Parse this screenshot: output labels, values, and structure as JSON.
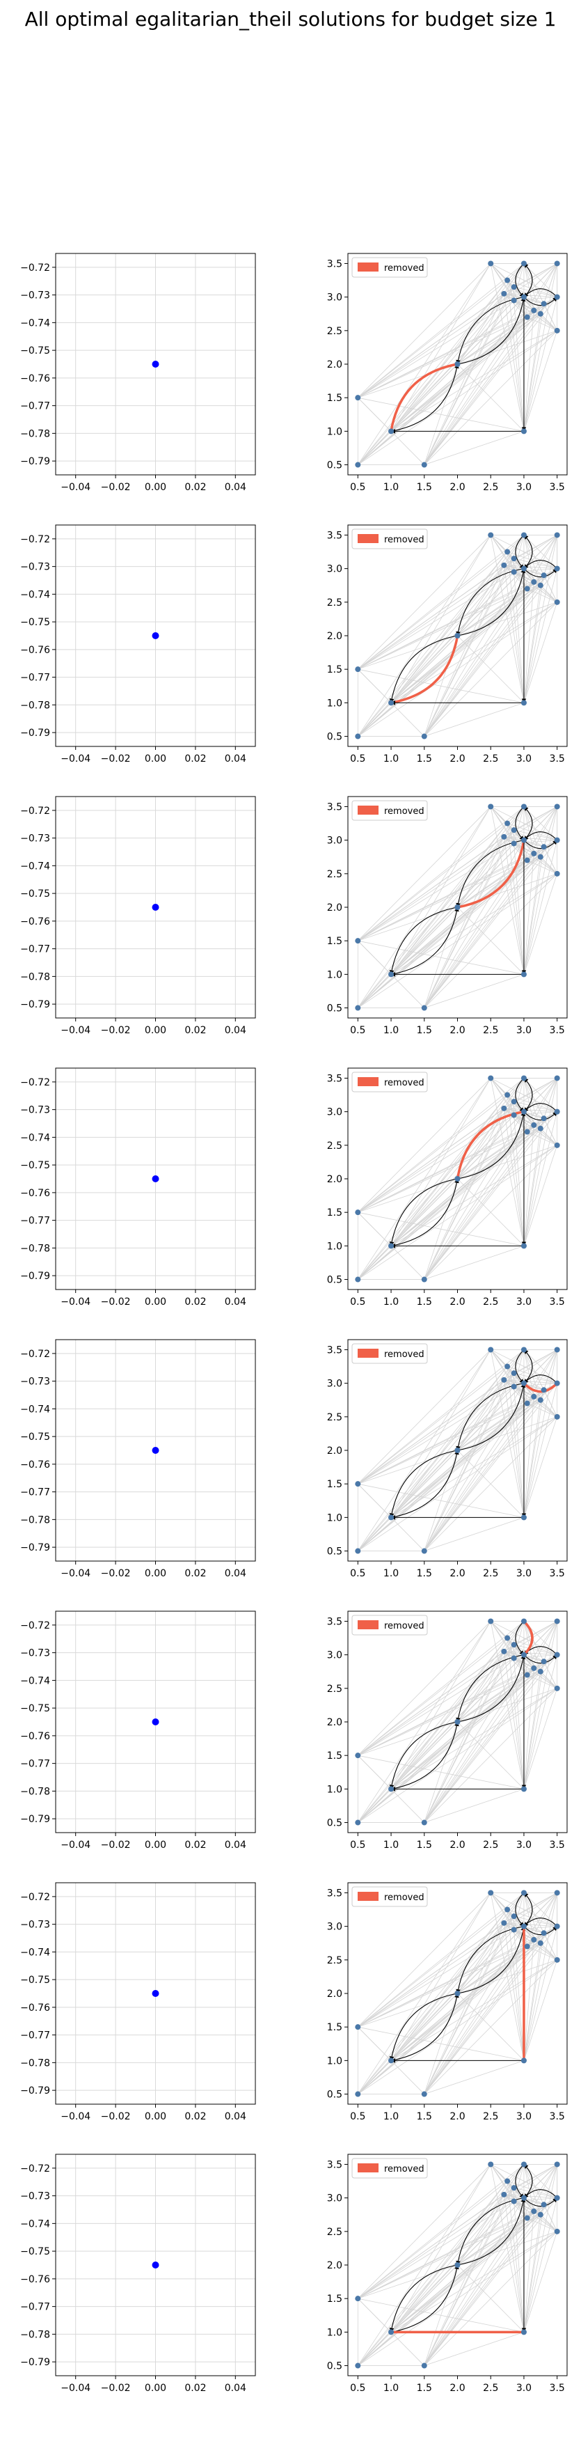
{
  "figure": {
    "title": "All optimal egalitarian_theil solutions for budget size 1"
  },
  "colors": {
    "point": "#0000ff",
    "node": "#4a78a8",
    "removed": "#f06048",
    "edge_bg": "#d4d4d4",
    "arc": "#000000",
    "grid": "#d9d9d9"
  },
  "chart_data": {
    "type": "scatter",
    "rows": 8,
    "left_panel": {
      "type": "scatter",
      "x": [
        0.0
      ],
      "y": [
        -0.755
      ],
      "xlim": [
        -0.05,
        0.05
      ],
      "ylim": [
        -0.795,
        -0.715
      ],
      "xticks": [
        "−0.04",
        "−0.02",
        "0.00",
        "0.02",
        "0.04"
      ],
      "xtick_values": [
        -0.04,
        -0.02,
        0.0,
        0.02,
        0.04
      ],
      "yticks": [
        "−0.72",
        "−0.73",
        "−0.74",
        "−0.75",
        "−0.76",
        "−0.77",
        "−0.78",
        "−0.79"
      ],
      "ytick_values": [
        -0.72,
        -0.73,
        -0.74,
        -0.75,
        -0.76,
        -0.77,
        -0.78,
        -0.79
      ],
      "grid": true
    },
    "right_panel": {
      "type": "network",
      "legend": "removed",
      "legend_position": "top-left",
      "xlim": [
        0.35,
        3.65
      ],
      "ylim": [
        0.35,
        3.65
      ],
      "ticks": [
        "0.5",
        "1.0",
        "1.5",
        "2.0",
        "2.5",
        "3.0",
        "3.5"
      ],
      "tick_values": [
        0.5,
        1.0,
        1.5,
        2.0,
        2.5,
        3.0,
        3.5
      ],
      "nodes": [
        [
          0.5,
          0.5
        ],
        [
          1.5,
          0.5
        ],
        [
          0.5,
          1.5
        ],
        [
          1.0,
          1.0
        ],
        [
          3.0,
          1.0
        ],
        [
          2.0,
          2.0
        ],
        [
          3.0,
          3.0
        ],
        [
          2.5,
          3.5
        ],
        [
          3.0,
          3.5
        ],
        [
          3.5,
          3.5
        ],
        [
          3.5,
          2.5
        ],
        [
          2.75,
          3.25
        ],
        [
          2.85,
          3.15
        ],
        [
          2.7,
          3.05
        ],
        [
          3.25,
          2.75
        ],
        [
          3.15,
          2.8
        ],
        [
          3.05,
          2.7
        ],
        [
          3.3,
          2.9
        ],
        [
          3.5,
          3.0
        ],
        [
          2.85,
          2.95
        ]
      ],
      "arcs": [
        {
          "from": [
            1.0,
            1.0
          ],
          "to": [
            2.0,
            2.0
          ],
          "bend": 0.35
        },
        {
          "from": [
            2.0,
            2.0
          ],
          "to": [
            1.0,
            1.0
          ],
          "bend": 0.35
        },
        {
          "from": [
            2.0,
            2.0
          ],
          "to": [
            3.0,
            3.0
          ],
          "bend": 0.35
        },
        {
          "from": [
            3.0,
            3.0
          ],
          "to": [
            2.0,
            2.0
          ],
          "bend": 0.35
        },
        {
          "from": [
            3.0,
            3.0
          ],
          "to": [
            3.0,
            1.0
          ],
          "bend": 0.0
        },
        {
          "from": [
            3.0,
            1.0
          ],
          "to": [
            1.0,
            1.0
          ],
          "bend": 0.0
        },
        {
          "from": [
            3.0,
            3.0
          ],
          "to": [
            3.5,
            3.0
          ],
          "bend": 0.5
        },
        {
          "from": [
            3.5,
            3.0
          ],
          "to": [
            3.0,
            3.0
          ],
          "bend": 0.5
        },
        {
          "from": [
            3.0,
            3.0
          ],
          "to": [
            3.0,
            3.5
          ],
          "bend": 0.5
        },
        {
          "from": [
            3.0,
            3.5
          ],
          "to": [
            3.0,
            3.0
          ],
          "bend": 0.5
        }
      ],
      "removed_arc_by_row": [
        1,
        0,
        2,
        3,
        6,
        8,
        4,
        5
      ]
    }
  }
}
